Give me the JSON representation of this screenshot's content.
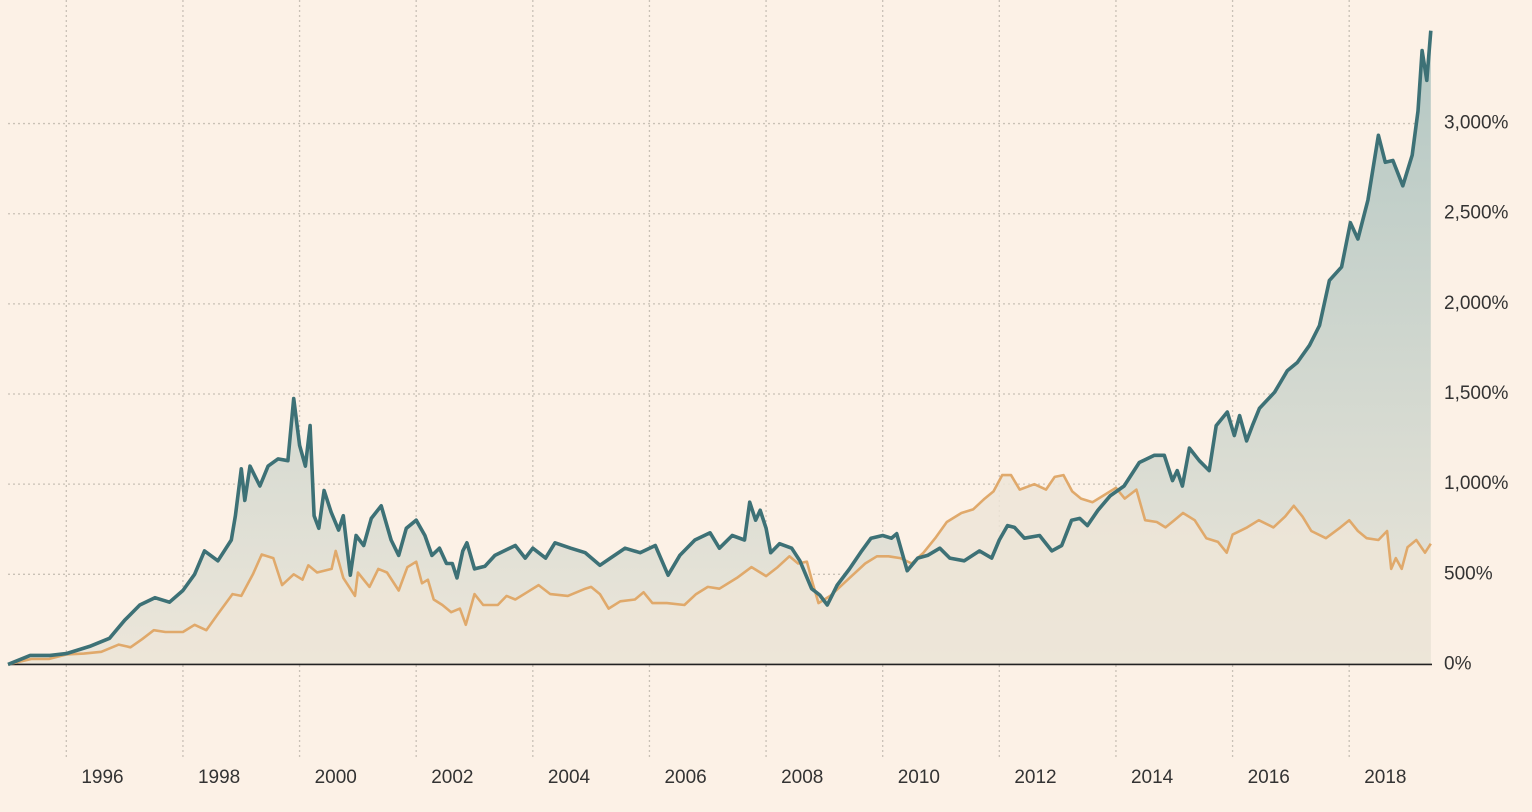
{
  "chart_data": {
    "type": "area-line",
    "xlim": [
      1995,
      2019.42
    ],
    "ylim": [
      -530,
      3630
    ],
    "xticks": [
      1996,
      1998,
      2000,
      2002,
      2004,
      2006,
      2008,
      2010,
      2012,
      2014,
      2016,
      2018
    ],
    "yticks": [
      {
        "value": 0,
        "label": "0%"
      },
      {
        "value": 500,
        "label": "500%"
      },
      {
        "value": 1000,
        "label": "1,000%"
      },
      {
        "value": 1500,
        "label": "1,500%"
      },
      {
        "value": 2000,
        "label": "2,000%"
      },
      {
        "value": 2500,
        "label": "2,500%"
      },
      {
        "value": 3000,
        "label": "3,000%"
      }
    ],
    "grid": true,
    "series": [
      {
        "color": "#3d7176",
        "x": [
          1995.0,
          1995.38,
          1995.72,
          1996.0,
          1996.4,
          1996.74,
          1997.0,
          1997.26,
          1997.52,
          1997.77,
          1998.0,
          1998.2,
          1998.37,
          1998.6,
          1998.83,
          1998.9,
          1999.0,
          1999.06,
          1999.15,
          1999.32,
          1999.46,
          1999.63,
          1999.8,
          1999.9,
          2000.0,
          2000.1,
          2000.18,
          2000.25,
          2000.33,
          2000.42,
          2000.54,
          2000.67,
          2000.75,
          2000.87,
          2000.97,
          2001.1,
          2001.23,
          2001.4,
          2001.57,
          2001.7,
          2001.83,
          2002.0,
          2002.15,
          2002.27,
          2002.4,
          2002.52,
          2002.62,
          2002.7,
          2002.8,
          2002.87,
          2003.0,
          2003.18,
          2003.35,
          2003.7,
          2003.87,
          2004.0,
          2004.22,
          2004.38,
          2004.65,
          2004.9,
          2005.15,
          2005.33,
          2005.58,
          2005.84,
          2006.1,
          2006.32,
          2006.52,
          2006.78,
          2007.04,
          2007.2,
          2007.42,
          2007.63,
          2007.72,
          2007.82,
          2007.9,
          2008.0,
          2008.08,
          2008.23,
          2008.44,
          2008.58,
          2008.78,
          2008.92,
          2009.05,
          2009.22,
          2009.43,
          2009.64,
          2009.8,
          2010.0,
          2010.15,
          2010.24,
          2010.42,
          2010.6,
          2010.77,
          2010.98,
          2011.15,
          2011.4,
          2011.66,
          2011.87,
          2012.0,
          2012.14,
          2012.26,
          2012.43,
          2012.69,
          2012.9,
          2013.07,
          2013.24,
          2013.38,
          2013.51,
          2013.69,
          2013.9,
          2014.14,
          2014.4,
          2014.66,
          2014.83,
          2014.97,
          2015.05,
          2015.14,
          2015.26,
          2015.43,
          2015.6,
          2015.72,
          2015.91,
          2016.03,
          2016.12,
          2016.24,
          2016.34,
          2016.46,
          2016.72,
          2016.94,
          2017.11,
          2017.32,
          2017.49,
          2017.66,
          2017.87,
          2018.02,
          2018.15,
          2018.32,
          2018.5,
          2018.62,
          2018.75,
          2018.92,
          2019.08,
          2019.18,
          2019.25,
          2019.33,
          2019.4
        ],
        "values": [
          0,
          50,
          50,
          60,
          100,
          145,
          245,
          330,
          370,
          345,
          410,
          500,
          630,
          575,
          690,
          825,
          1085,
          910,
          1100,
          990,
          1100,
          1140,
          1130,
          1475,
          1215,
          1100,
          1325,
          825,
          755,
          965,
          845,
          745,
          825,
          495,
          715,
          660,
          810,
          880,
          690,
          605,
          755,
          800,
          715,
          605,
          645,
          560,
          560,
          480,
          630,
          675,
          530,
          545,
          605,
          660,
          590,
          645,
          590,
          675,
          645,
          620,
          550,
          590,
          645,
          620,
          660,
          495,
          605,
          690,
          730,
          645,
          715,
          690,
          900,
          800,
          855,
          755,
          620,
          670,
          645,
          575,
          420,
          385,
          330,
          440,
          530,
          630,
          700,
          715,
          700,
          725,
          520,
          590,
          605,
          645,
          590,
          575,
          630,
          590,
          690,
          770,
          760,
          700,
          715,
          630,
          660,
          800,
          810,
          770,
          855,
          935,
          990,
          1120,
          1160,
          1160,
          1020,
          1075,
          990,
          1200,
          1130,
          1075,
          1325,
          1400,
          1270,
          1380,
          1240,
          1325,
          1420,
          1510,
          1630,
          1675,
          1770,
          1880,
          2130,
          2205,
          2450,
          2360,
          2575,
          2935,
          2785,
          2795,
          2655,
          2825,
          3070,
          3405,
          3240,
          3515
        ]
      },
      {
        "color": "#e0a96b",
        "x": [
          1995.0,
          1995.4,
          1995.7,
          1996.0,
          1996.3,
          1996.6,
          1996.9,
          1997.1,
          1997.3,
          1997.5,
          1997.7,
          1998.0,
          1998.2,
          1998.4,
          1998.6,
          1998.85,
          1999.0,
          1999.2,
          1999.35,
          1999.55,
          1999.7,
          1999.9,
          2000.05,
          2000.15,
          2000.3,
          2000.55,
          2000.62,
          2000.75,
          2000.95,
          2001.0,
          2001.2,
          2001.35,
          2001.5,
          2001.7,
          2001.85,
          2002.0,
          2002.1,
          2002.2,
          2002.3,
          2002.45,
          2002.6,
          2002.75,
          2002.85,
          2003.0,
          2003.15,
          2003.4,
          2003.55,
          2003.7,
          2003.9,
          2004.1,
          2004.3,
          2004.6,
          2004.9,
          2005.0,
          2005.15,
          2005.3,
          2005.5,
          2005.75,
          2005.9,
          2006.05,
          2006.3,
          2006.6,
          2006.8,
          2007.0,
          2007.2,
          2007.5,
          2007.75,
          2008.0,
          2008.2,
          2008.4,
          2008.55,
          2008.7,
          2008.8,
          2008.9,
          2009.1,
          2009.3,
          2009.5,
          2009.7,
          2009.9,
          2010.1,
          2010.3,
          2010.5,
          2010.7,
          2010.9,
          2011.1,
          2011.35,
          2011.55,
          2011.75,
          2011.9,
          2012.05,
          2012.2,
          2012.35,
          2012.6,
          2012.8,
          2012.95,
          2013.1,
          2013.25,
          2013.4,
          2013.6,
          2013.8,
          2014.0,
          2014.15,
          2014.35,
          2014.5,
          2014.7,
          2014.85,
          2015.0,
          2015.15,
          2015.35,
          2015.55,
          2015.75,
          2015.9,
          2016.0,
          2016.25,
          2016.45,
          2016.7,
          2016.9,
          2017.05,
          2017.2,
          2017.35,
          2017.6,
          2017.85,
          2018.0,
          2018.15,
          2018.3,
          2018.5,
          2018.65,
          2018.72,
          2018.8,
          2018.9,
          2019.0,
          2019.15,
          2019.3,
          2019.4
        ],
        "values": [
          0,
          30,
          30,
          55,
          60,
          70,
          110,
          95,
          140,
          190,
          180,
          180,
          220,
          190,
          280,
          390,
          380,
          500,
          610,
          590,
          440,
          500,
          470,
          550,
          510,
          530,
          630,
          480,
          380,
          510,
          430,
          530,
          510,
          410,
          540,
          570,
          450,
          470,
          360,
          330,
          290,
          310,
          220,
          390,
          330,
          330,
          380,
          360,
          400,
          440,
          390,
          380,
          420,
          430,
          390,
          310,
          350,
          360,
          400,
          340,
          340,
          330,
          390,
          430,
          420,
          480,
          540,
          490,
          540,
          600,
          560,
          570,
          450,
          340,
          380,
          440,
          500,
          560,
          600,
          600,
          590,
          560,
          620,
          700,
          790,
          840,
          860,
          920,
          960,
          1050,
          1050,
          970,
          1000,
          970,
          1040,
          1050,
          960,
          920,
          900,
          940,
          980,
          920,
          970,
          800,
          790,
          760,
          800,
          840,
          800,
          700,
          680,
          620,
          720,
          760,
          800,
          760,
          820,
          880,
          820,
          740,
          700,
          760,
          800,
          740,
          700,
          690,
          740,
          530,
          590,
          530,
          650,
          690,
          620,
          670
        ]
      }
    ]
  }
}
